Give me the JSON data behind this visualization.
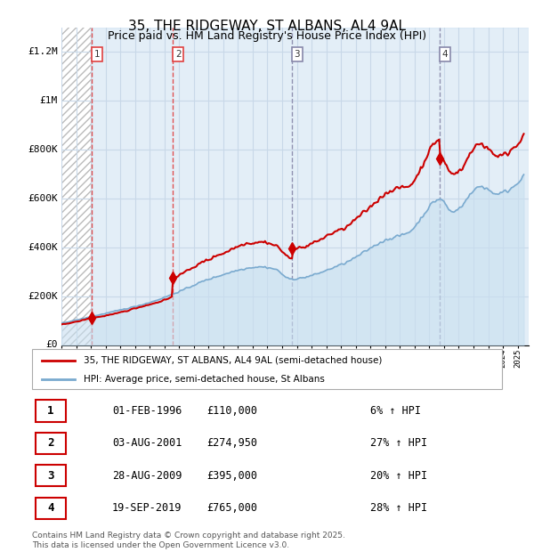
{
  "title": "35, THE RIDGEWAY, ST ALBANS, AL4 9AL",
  "subtitle": "Price paid vs. HM Land Registry's House Price Index (HPI)",
  "ylim": [
    0,
    1300000
  ],
  "yticks": [
    0,
    200000,
    400000,
    600000,
    800000,
    1000000,
    1200000
  ],
  "ytick_labels": [
    "£0",
    "£200K",
    "£400K",
    "£600K",
    "£800K",
    "£1M",
    "£1.2M"
  ],
  "xlim_start": 1994.0,
  "xlim_end": 2025.75,
  "red_line_color": "#cc0000",
  "blue_line_color": "#7aaacf",
  "blue_fill_color": "#c8dff0",
  "grid_color": "#c8d8e8",
  "sale_dates": [
    1996.083,
    2001.583,
    2009.667,
    2019.708
  ],
  "sale_prices": [
    110000,
    274950,
    395000,
    765000
  ],
  "vline_colors": [
    "#e04040",
    "#e04040",
    "#8888aa",
    "#8888aa"
  ],
  "legend_red_label": "35, THE RIDGEWAY, ST ALBANS, AL4 9AL (semi-detached house)",
  "legend_blue_label": "HPI: Average price, semi-detached house, St Albans",
  "table_data": [
    [
      "1",
      "01-FEB-1996",
      "£110,000",
      "6% ↑ HPI"
    ],
    [
      "2",
      "03-AUG-2001",
      "£274,950",
      "27% ↑ HPI"
    ],
    [
      "3",
      "28-AUG-2009",
      "£395,000",
      "20% ↑ HPI"
    ],
    [
      "4",
      "19-SEP-2019",
      "£765,000",
      "28% ↑ HPI"
    ]
  ],
  "footnote": "Contains HM Land Registry data © Crown copyright and database right 2025.\nThis data is licensed under the Open Government Licence v3.0."
}
